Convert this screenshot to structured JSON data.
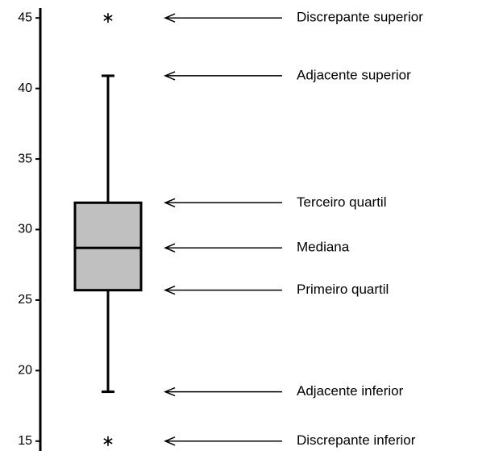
{
  "chart_data": {
    "type": "box",
    "box": {
      "whislo": 18.5,
      "q1": 25.7,
      "med": 28.7,
      "q3": 31.9,
      "whishi": 40.9,
      "fliers": [
        15,
        45
      ]
    },
    "color": "#c0c0c0",
    "ylim": [
      14.3,
      45.7
    ],
    "yticks": [
      15,
      20,
      25,
      30,
      35,
      40,
      45
    ],
    "annotations": [
      "Discrepante superior",
      "Adjacente superior",
      "Terceiro quartil",
      "Mediana",
      "Primeiro quartil",
      "Adjacente inferior",
      "Discrepante inferior"
    ]
  }
}
